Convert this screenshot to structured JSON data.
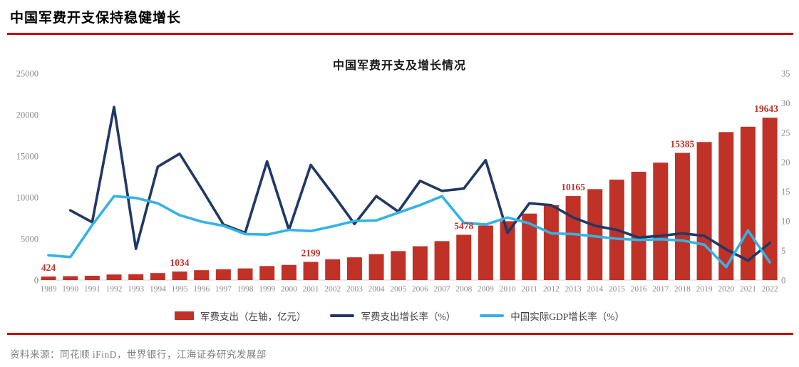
{
  "page": {
    "title": "中国军费开支保持稳健增长"
  },
  "footer": {
    "source": "资料来源：同花顺 iFinD，世界银行，江海证券研究发展部"
  },
  "colors": {
    "bar_red": "#c03127",
    "navy_line": "#203864",
    "sky_line": "#33b3e5",
    "rule_red": "#c00000",
    "axis_text": "#8c8c8c",
    "data_label": "#c03127"
  },
  "chart_data": {
    "type": "bar",
    "title": "中国军费开支及增长情况",
    "categories": [
      "1989",
      "1990",
      "1991",
      "1992",
      "1993",
      "1994",
      "1995",
      "1996",
      "1997",
      "1998",
      "1999",
      "2000",
      "2001",
      "2002",
      "2003",
      "2004",
      "2005",
      "2006",
      "2007",
      "2008",
      "2009",
      "2010",
      "2011",
      "2012",
      "2013",
      "2014",
      "2015",
      "2016",
      "2017",
      "2018",
      "2019",
      "2020",
      "2021",
      "2022"
    ],
    "bar_series": {
      "name": "军费支出（左轴，亿元）",
      "axis": "left",
      "color": "#c03127",
      "values": [
        424,
        474,
        521,
        674,
        710,
        846,
        1034,
        1194,
        1306,
        1410,
        1693,
        1835,
        2199,
        2513,
        2749,
        3139,
        3503,
        4091,
        4709,
        5478,
        6590,
        7117,
        8042,
        9055,
        10165,
        11000,
        12150,
        13100,
        14200,
        15385,
        16700,
        17900,
        18550,
        19643
      ]
    },
    "line_series": [
      {
        "name": "军费支出增长率（%）",
        "axis": "right",
        "color": "#203864",
        "values": [
          null,
          11.8,
          9.8,
          29.3,
          5.3,
          19.2,
          21.4,
          15.5,
          9.4,
          8.0,
          20.1,
          8.5,
          19.5,
          14.6,
          9.5,
          14.2,
          11.6,
          16.8,
          15.1,
          15.5,
          20.3,
          8.0,
          13.0,
          12.7,
          10.6,
          9.2,
          8.5,
          7.2,
          7.5,
          7.9,
          7.5,
          5.2,
          3.3,
          6.3
        ]
      },
      {
        "name": "中国实际GDP增长率（%）",
        "axis": "right",
        "color": "#33b3e5",
        "values": [
          4.2,
          3.9,
          9.3,
          14.2,
          13.9,
          13.0,
          11.0,
          9.9,
          9.2,
          7.8,
          7.7,
          8.5,
          8.3,
          9.1,
          10.0,
          10.1,
          11.4,
          12.7,
          14.2,
          9.7,
          9.4,
          10.6,
          9.6,
          7.9,
          7.8,
          7.4,
          7.0,
          6.8,
          6.9,
          6.7,
          6.0,
          2.2,
          8.4,
          3.0
        ]
      }
    ],
    "data_labels": {
      "years": [
        "1989",
        "1995",
        "2001",
        "2008",
        "2013",
        "2018",
        "2022"
      ],
      "values": [
        "424",
        "1034",
        "2199",
        "5478",
        "10165",
        "15385",
        "19643"
      ]
    },
    "left_axis": {
      "min": 0,
      "max": 25000,
      "ticks": [
        "0",
        "5000",
        "10000",
        "15000",
        "20000",
        "25000"
      ]
    },
    "right_axis": {
      "min": 0,
      "max": 35,
      "ticks": [
        "0",
        "5",
        "10",
        "15",
        "20",
        "25",
        "30",
        "35"
      ]
    },
    "grid": false,
    "legend_position": "bottom"
  }
}
